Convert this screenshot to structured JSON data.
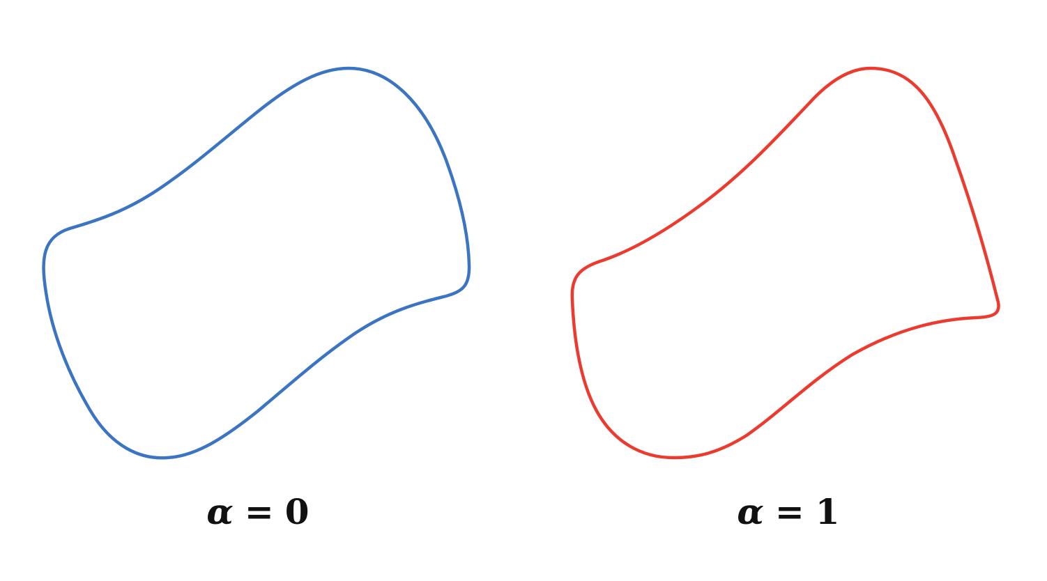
{
  "panels": [
    {
      "variable": "α",
      "operator": "=",
      "value": "0",
      "stroke_color": "#3a74c2"
    },
    {
      "variable": "α",
      "operator": "=",
      "value": "1",
      "stroke_color": "#ec3b2e"
    }
  ]
}
